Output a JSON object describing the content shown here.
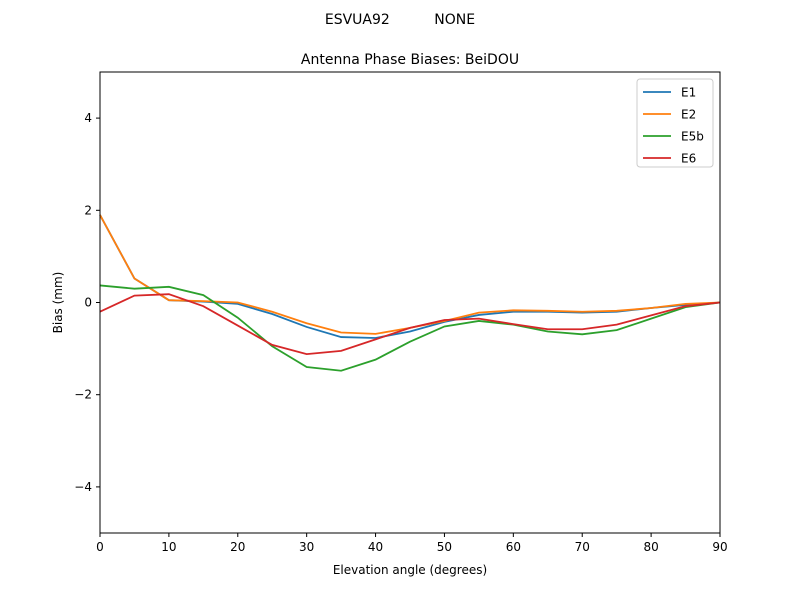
{
  "chart_data": {
    "type": "line",
    "suptitle": "ESVUA92          NONE",
    "title": "Antenna Phase Biases: BeiDOU",
    "xlabel": "Elevation angle (degrees)",
    "ylabel": "Bias (mm)",
    "xlim": [
      0,
      90
    ],
    "ylim": [
      -5,
      5
    ],
    "xticks": [
      0,
      10,
      20,
      30,
      40,
      50,
      60,
      70,
      80,
      90
    ],
    "yticks": [
      -4,
      -2,
      0,
      2,
      4
    ],
    "ytick_labels": [
      "−4",
      "−2",
      "0",
      "2",
      "4"
    ],
    "grid": false,
    "legend_position": "top-right",
    "x": [
      0,
      5,
      10,
      15,
      20,
      25,
      30,
      35,
      40,
      45,
      50,
      55,
      60,
      65,
      70,
      75,
      80,
      85,
      90
    ],
    "series": [
      {
        "name": "E1",
        "color": "#1f77b4",
        "values": [
          1.9,
          0.52,
          0.05,
          0.02,
          -0.03,
          -0.25,
          -0.53,
          -0.75,
          -0.77,
          -0.63,
          -0.42,
          -0.27,
          -0.2,
          -0.2,
          -0.22,
          -0.2,
          -0.12,
          -0.05,
          0
        ]
      },
      {
        "name": "E2",
        "color": "#ff7f0e",
        "values": [
          1.9,
          0.52,
          0.05,
          0.03,
          0.0,
          -0.2,
          -0.45,
          -0.65,
          -0.68,
          -0.55,
          -0.4,
          -0.22,
          -0.17,
          -0.18,
          -0.2,
          -0.18,
          -0.12,
          -0.03,
          0
        ]
      },
      {
        "name": "E5b",
        "color": "#2ca02c",
        "values": [
          0.37,
          0.3,
          0.34,
          0.16,
          -0.33,
          -0.95,
          -1.4,
          -1.48,
          -1.24,
          -0.85,
          -0.52,
          -0.4,
          -0.48,
          -0.63,
          -0.69,
          -0.6,
          -0.35,
          -0.1,
          0
        ]
      },
      {
        "name": "E6",
        "color": "#d62728",
        "values": [
          -0.2,
          0.15,
          0.18,
          -0.08,
          -0.5,
          -0.92,
          -1.12,
          -1.05,
          -0.8,
          -0.55,
          -0.38,
          -0.35,
          -0.47,
          -0.58,
          -0.58,
          -0.48,
          -0.28,
          -0.08,
          0
        ]
      }
    ]
  }
}
